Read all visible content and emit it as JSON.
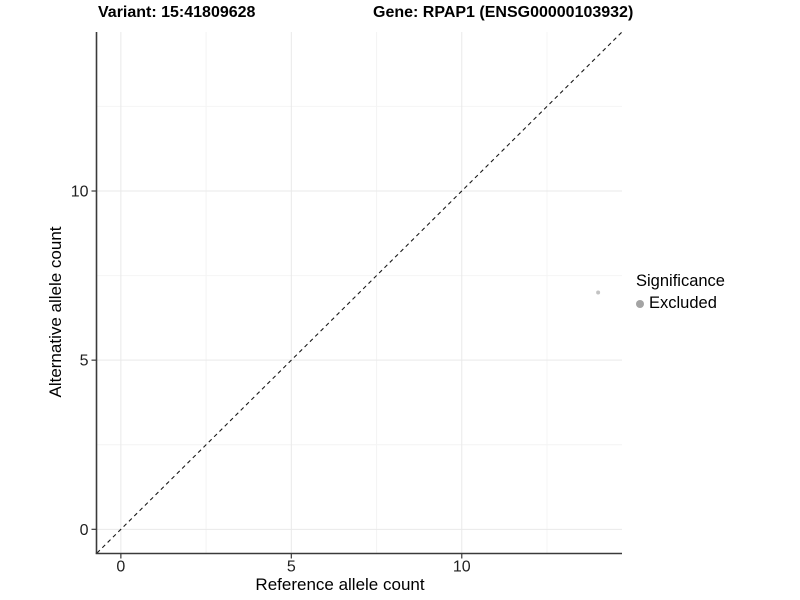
{
  "titles": {
    "variant": "Variant: 15:41809628",
    "gene": "Gene: RPAP1 (ENSG00000103932)"
  },
  "legend": {
    "title": "Significance",
    "items": [
      {
        "label": "Excluded",
        "color": "#a4a4a4"
      }
    ]
  },
  "chart_data": {
    "type": "scatter",
    "title": "Variant: 15:41809628 — Gene: RPAP1 (ENSG00000103932)",
    "xlabel": "Reference allele count",
    "ylabel": "Alternative allele count",
    "xlim": [
      0,
      14
    ],
    "ylim": [
      0,
      14
    ],
    "xticks": [
      0,
      5,
      10
    ],
    "yticks": [
      0,
      5,
      10
    ],
    "xticks_minor": [
      2.5,
      7.5,
      12.5
    ],
    "yticks_minor": [
      2.5,
      7.5,
      12.5
    ],
    "grid": "major+minor",
    "legend_position": "right",
    "series": [
      {
        "name": "Excluded",
        "color": "#c3c3c3",
        "points": [
          {
            "x": 14,
            "y": 7
          }
        ]
      }
    ],
    "reference_line": {
      "type": "identity",
      "slope": 1,
      "intercept": 0,
      "style": "dashed",
      "color": "#1a1a1a"
    }
  },
  "style": {
    "axis_line_color": "#3a3a3a",
    "grid_major_color": "#e9e9e9",
    "grid_minor_color": "#f4f4f4",
    "tick_text_color": "#1f1f1f",
    "background": "#ffffff"
  }
}
